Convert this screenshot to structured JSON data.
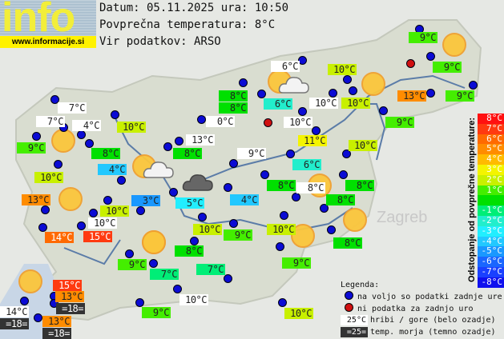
{
  "logo": {
    "text": "info",
    "url": "www.informacije.si"
  },
  "header": {
    "date_line": "Datum: 05.11.2025 ura: 10:50",
    "avg_line": "Povprečna temperatura: 8°C",
    "source_line": "Vir podatkov: ARSO"
  },
  "colors": {
    "station_dot": "#0b0bd4",
    "missing_dot": "#d01010",
    "hill_bg": "#ffffff",
    "sea_bg": "#333333"
  },
  "stations": [
    {
      "temp": "9°C",
      "bg": "#44ee00"
    },
    {
      "temp": "9°C",
      "bg": "#44ee00"
    },
    {
      "temp": "9°C",
      "bg": "#44ee00"
    },
    {
      "temp": "13°C",
      "bg": "#ff8c00"
    },
    {
      "temp": "6°C",
      "bg": "#ffffff"
    },
    {
      "temp": "10°C",
      "bg": "#c8f000"
    },
    {
      "temp": "10°C",
      "bg": "#ffffff"
    },
    {
      "temp": "10°C",
      "bg": "#c8f000"
    },
    {
      "temp": "6°C",
      "bg": "#22eecc"
    },
    {
      "temp": "8°C",
      "bg": "#00e000"
    },
    {
      "temp": "10°C",
      "bg": "#ffffff"
    },
    {
      "temp": "9°C",
      "bg": "#44ee00"
    },
    {
      "temp": "11°C",
      "bg": "#f4f400"
    },
    {
      "temp": "10°C",
      "bg": "#c8f000"
    },
    {
      "temp": "9°C",
      "bg": "#ffffff"
    },
    {
      "temp": "6°C",
      "bg": "#22eecc"
    },
    {
      "temp": "8°C",
      "bg": "#00e000"
    },
    {
      "temp": "8°C",
      "bg": "#ffffff"
    },
    {
      "temp": "8°C",
      "bg": "#00e000"
    },
    {
      "temp": "8°C",
      "bg": "#00e000"
    },
    {
      "temp": "4°C",
      "bg": "#22c8ff"
    },
    {
      "temp": "10°C",
      "bg": "#c8f000"
    },
    {
      "temp": "8°C",
      "bg": "#00e000"
    },
    {
      "temp": "9°C",
      "bg": "#44ee00"
    },
    {
      "temp": "8°C",
      "bg": "#00e000"
    },
    {
      "temp": "7°C",
      "bg": "#ffffff"
    },
    {
      "temp": "7°C",
      "bg": "#ffffff"
    },
    {
      "temp": "4°C",
      "bg": "#ffffff"
    },
    {
      "temp": "10°C",
      "bg": "#c8f000"
    },
    {
      "temp": "0°C",
      "bg": "#ffffff"
    },
    {
      "temp": "9°C",
      "bg": "#44ee00"
    },
    {
      "temp": "8°C",
      "bg": "#00e000"
    },
    {
      "temp": "13°C",
      "bg": "#ffffff"
    },
    {
      "temp": "8°C",
      "bg": "#00e000"
    },
    {
      "temp": "4°C",
      "bg": "#22c8ff"
    },
    {
      "temp": "10°C",
      "bg": "#c8f000"
    },
    {
      "temp": "3°C",
      "bg": "#1a98ff"
    },
    {
      "temp": "5°C",
      "bg": "#22eeff"
    },
    {
      "temp": "13°C",
      "bg": "#ff8c00"
    },
    {
      "temp": "10°C",
      "bg": "#c8f000"
    },
    {
      "temp": "10°C",
      "bg": "#ffffff"
    },
    {
      "temp": "14°C",
      "bg": "#ff6a00"
    },
    {
      "temp": "15°C",
      "bg": "#ff3a10"
    },
    {
      "temp": "10°C",
      "bg": "#c8f000"
    },
    {
      "temp": "9°C",
      "bg": "#44ee00"
    },
    {
      "temp": "8°C",
      "bg": "#00e000"
    },
    {
      "temp": "9°C",
      "bg": "#44ee00"
    },
    {
      "temp": "7°C",
      "bg": "#00ee77"
    },
    {
      "temp": "7°C",
      "bg": "#00ee77"
    },
    {
      "temp": "15°C",
      "bg": "#ff3a10"
    },
    {
      "temp": "13°C",
      "bg": "#ff8c00"
    },
    {
      "temp": "=18=",
      "bg": "#333333"
    },
    {
      "temp": "14°C",
      "bg": "#ffffff"
    },
    {
      "temp": "=18=",
      "bg": "#333333"
    },
    {
      "temp": "13°C",
      "bg": "#ff8c00"
    },
    {
      "temp": "=18=",
      "bg": "#333333"
    },
    {
      "temp": "10°C",
      "bg": "#ffffff"
    },
    {
      "temp": "9°C",
      "bg": "#44ee00"
    },
    {
      "temp": "10°C",
      "bg": "#c8f000"
    }
  ],
  "weather_icons": [
    "sun",
    "sun",
    "sun",
    "sun",
    "sun",
    "sun",
    "sun",
    "sun",
    "sun",
    "sun",
    "sun-cloud",
    "sun-cloud",
    "dark-cloud"
  ],
  "deviation_scale": {
    "title": "Odstopanje od povprečne temperature:",
    "steps": [
      {
        "label": "8°C",
        "color": "#ff1010"
      },
      {
        "label": "7°C",
        "color": "#ff3a10"
      },
      {
        "label": "6°C",
        "color": "#ff6a00"
      },
      {
        "label": "5°C",
        "color": "#ff8c00"
      },
      {
        "label": "4°C",
        "color": "#ffbb00"
      },
      {
        "label": "3°C",
        "color": "#f4f400"
      },
      {
        "label": "2°C",
        "color": "#c8f000"
      },
      {
        "label": "1°C",
        "color": "#44ee00"
      },
      {
        "label": "",
        "color": "#00e000"
      },
      {
        "label": "-1°C",
        "color": "#00ee77"
      },
      {
        "label": "-2°C",
        "color": "#22eecc"
      },
      {
        "label": "-3°C",
        "color": "#22eeff"
      },
      {
        "label": "-4°C",
        "color": "#22c8ff"
      },
      {
        "label": "-5°C",
        "color": "#1a98ff"
      },
      {
        "label": "-6°C",
        "color": "#1a66ff"
      },
      {
        "label": "-7°C",
        "color": "#1a40ff"
      },
      {
        "label": "-8°C",
        "color": "#1010ee"
      }
    ]
  },
  "legend": {
    "title": "Legenda:",
    "available": "na voljo so podatki zadnje ure",
    "missing": "ni podatka za zadnjo uro",
    "hill_sample": "25°C",
    "hill": "hribi / gore (belo ozadje)",
    "sea_sample": "=25=",
    "sea": "temp. morja (temno ozadje)"
  }
}
